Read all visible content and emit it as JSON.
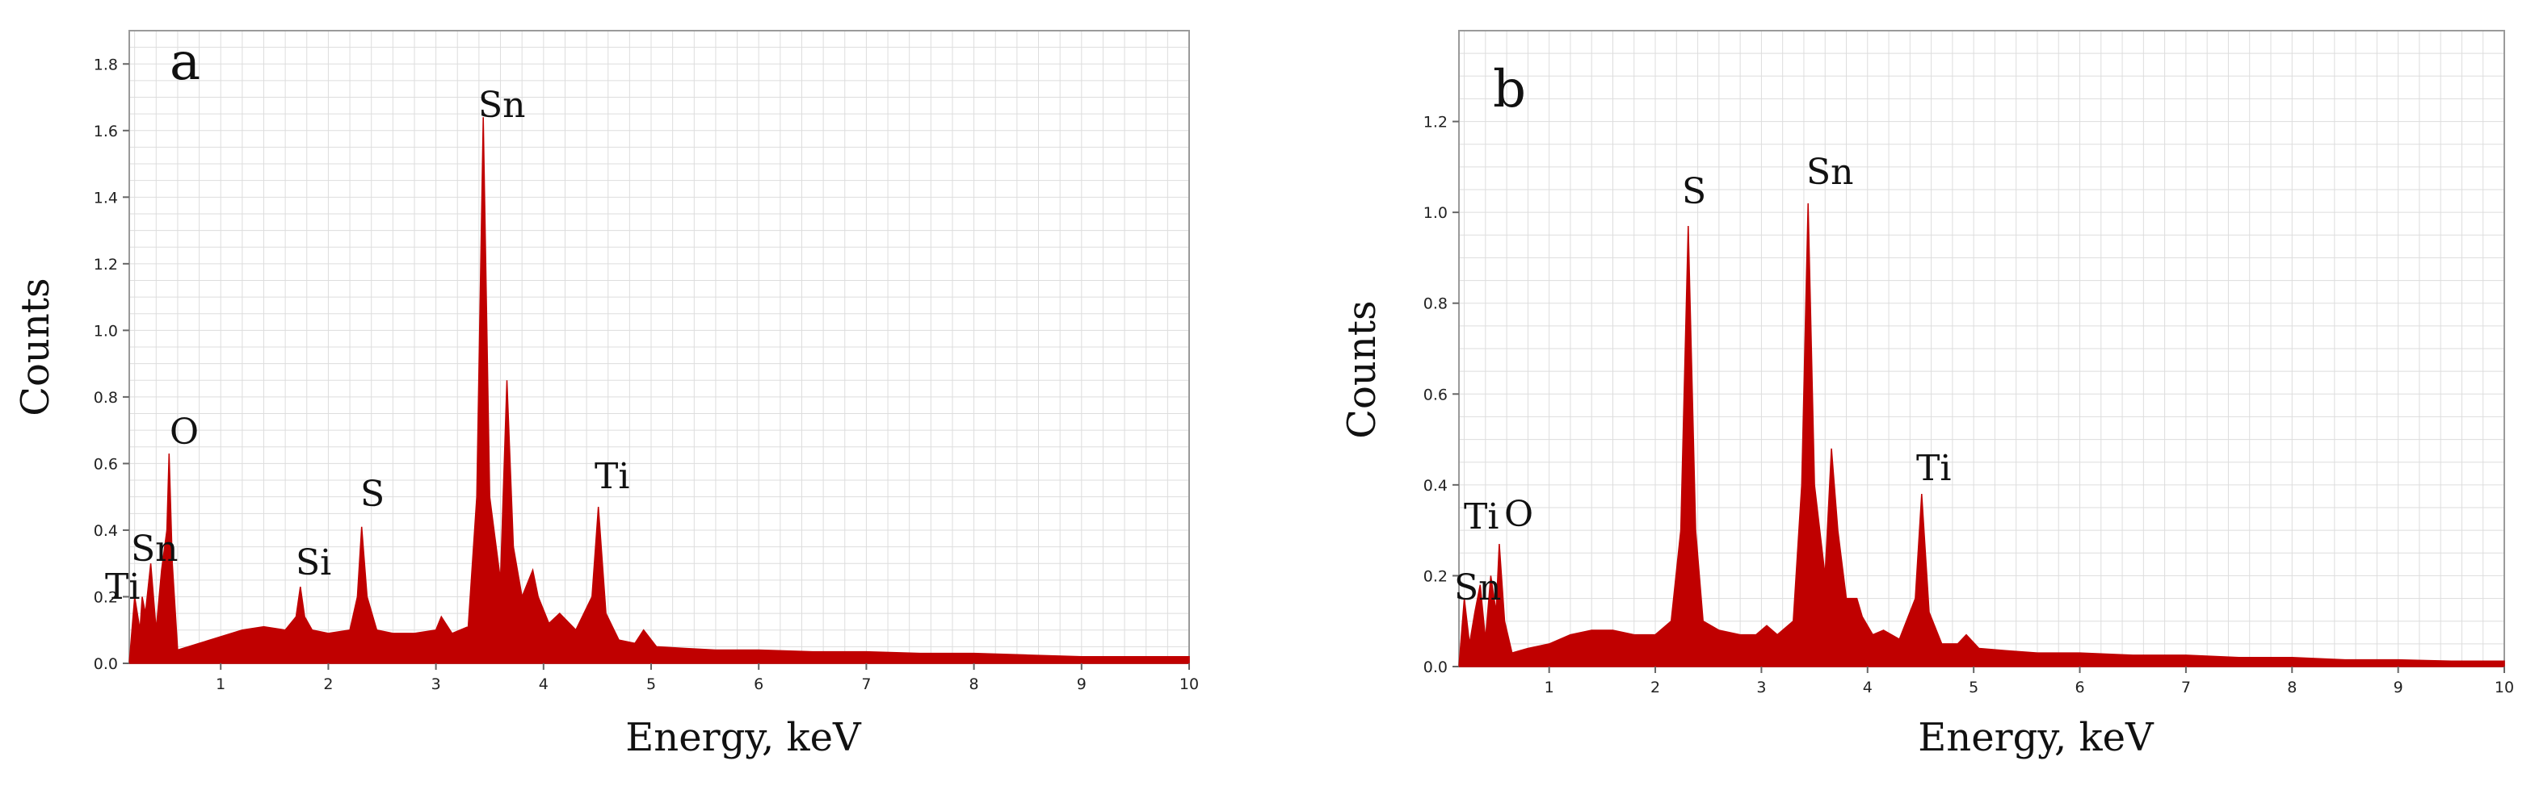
{
  "chart_data": [
    {
      "panel": "a",
      "type": "area",
      "xlabel": "Energy, keV",
      "ylabel": "Counts",
      "xlim": [
        0.15,
        10
      ],
      "ylim": [
        0,
        1.9
      ],
      "xticks": [
        1,
        2,
        3,
        4,
        5,
        6,
        7,
        8,
        9,
        10
      ],
      "yticks": [
        0.0,
        0.2,
        0.4,
        0.6,
        0.8,
        1.0,
        1.2,
        1.4,
        1.6,
        1.8
      ],
      "grid": true,
      "series_color": "#c00000",
      "peaks": [
        {
          "label": "Ti",
          "x": 0.27,
          "y": 0.2
        },
        {
          "label": "Sn",
          "x": 0.35,
          "y": 0.3
        },
        {
          "label": "O",
          "x": 0.52,
          "y": 0.63
        },
        {
          "label": "Si",
          "x": 1.74,
          "y": 0.23
        },
        {
          "label": "S",
          "x": 2.31,
          "y": 0.41
        },
        {
          "label": "Sn",
          "x": 3.44,
          "y": 1.64
        },
        {
          "label": "Ti",
          "x": 4.51,
          "y": 0.47
        }
      ],
      "x": [
        0.15,
        0.2,
        0.25,
        0.27,
        0.3,
        0.35,
        0.4,
        0.45,
        0.5,
        0.52,
        0.55,
        0.6,
        0.7,
        0.8,
        1.0,
        1.2,
        1.4,
        1.6,
        1.7,
        1.74,
        1.78,
        1.85,
        2.0,
        2.2,
        2.27,
        2.31,
        2.36,
        2.45,
        2.6,
        2.8,
        3.0,
        3.05,
        3.15,
        3.3,
        3.38,
        3.44,
        3.5,
        3.6,
        3.66,
        3.72,
        3.8,
        3.9,
        3.95,
        4.05,
        4.15,
        4.3,
        4.45,
        4.51,
        4.58,
        4.7,
        4.85,
        4.93,
        5.05,
        5.3,
        5.6,
        6.0,
        6.5,
        7.0,
        7.5,
        8.0,
        8.5,
        9.0,
        9.5,
        10.0
      ],
      "y": [
        0.0,
        0.2,
        0.1,
        0.2,
        0.15,
        0.3,
        0.1,
        0.28,
        0.4,
        0.63,
        0.3,
        0.04,
        0.05,
        0.06,
        0.08,
        0.1,
        0.11,
        0.1,
        0.14,
        0.23,
        0.14,
        0.1,
        0.09,
        0.1,
        0.2,
        0.41,
        0.2,
        0.1,
        0.09,
        0.09,
        0.1,
        0.14,
        0.09,
        0.11,
        0.5,
        1.64,
        0.5,
        0.25,
        0.85,
        0.35,
        0.2,
        0.28,
        0.2,
        0.12,
        0.15,
        0.1,
        0.2,
        0.47,
        0.15,
        0.07,
        0.06,
        0.1,
        0.05,
        0.045,
        0.04,
        0.04,
        0.035,
        0.035,
        0.03,
        0.03,
        0.025,
        0.02,
        0.02,
        0.02
      ]
    },
    {
      "panel": "b",
      "type": "area",
      "xlabel": "Energy, keV",
      "ylabel": "Counts",
      "xlim": [
        0.15,
        10
      ],
      "ylim": [
        0,
        1.4
      ],
      "xticks": [
        1,
        2,
        3,
        4,
        5,
        6,
        7,
        8,
        9,
        10
      ],
      "yticks": [
        0.0,
        0.2,
        0.4,
        0.6,
        0.8,
        1.0,
        1.2
      ],
      "grid": true,
      "series_color": "#c00000",
      "peaks": [
        {
          "label": "Sn",
          "x": 0.35,
          "y": 0.18
        },
        {
          "label": "Ti",
          "x": 0.45,
          "y": 0.2
        },
        {
          "label": "O",
          "x": 0.53,
          "y": 0.27
        },
        {
          "label": "S",
          "x": 2.31,
          "y": 0.97
        },
        {
          "label": "Sn",
          "x": 3.44,
          "y": 1.02
        },
        {
          "label": "Ti",
          "x": 4.51,
          "y": 0.38
        }
      ],
      "x": [
        0.15,
        0.2,
        0.25,
        0.3,
        0.35,
        0.4,
        0.45,
        0.5,
        0.53,
        0.58,
        0.65,
        0.8,
        1.0,
        1.2,
        1.4,
        1.6,
        1.8,
        2.0,
        2.15,
        2.24,
        2.31,
        2.38,
        2.45,
        2.6,
        2.8,
        2.95,
        3.05,
        3.15,
        3.3,
        3.38,
        3.44,
        3.5,
        3.6,
        3.66,
        3.72,
        3.8,
        3.9,
        3.95,
        4.05,
        4.15,
        4.3,
        4.45,
        4.51,
        4.58,
        4.7,
        4.85,
        4.93,
        5.05,
        5.3,
        5.6,
        6.0,
        6.5,
        7.0,
        7.5,
        8.0,
        8.5,
        9.0,
        9.5,
        10.0
      ],
      "y": [
        0.0,
        0.15,
        0.05,
        0.12,
        0.18,
        0.06,
        0.2,
        0.12,
        0.27,
        0.1,
        0.03,
        0.04,
        0.05,
        0.07,
        0.08,
        0.08,
        0.07,
        0.07,
        0.1,
        0.3,
        0.97,
        0.3,
        0.1,
        0.08,
        0.07,
        0.07,
        0.09,
        0.07,
        0.1,
        0.4,
        1.02,
        0.4,
        0.2,
        0.48,
        0.3,
        0.15,
        0.15,
        0.11,
        0.07,
        0.08,
        0.06,
        0.15,
        0.38,
        0.12,
        0.05,
        0.05,
        0.07,
        0.04,
        0.035,
        0.03,
        0.03,
        0.025,
        0.025,
        0.02,
        0.02,
        0.015,
        0.015,
        0.012,
        0.012
      ]
    }
  ]
}
